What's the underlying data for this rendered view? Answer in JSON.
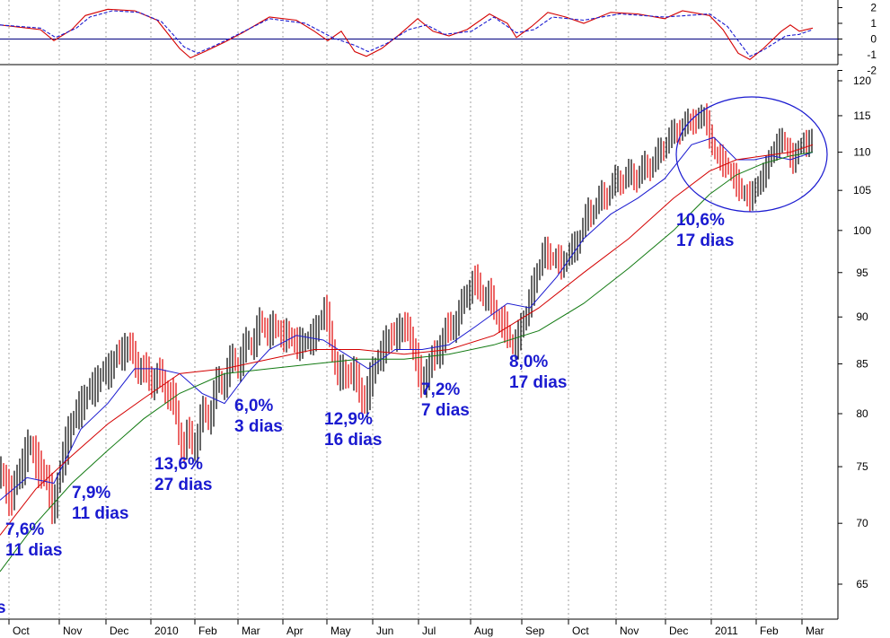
{
  "chart_data": [
    {
      "type": "line",
      "panel": "oscillator",
      "ylim": [
        -2,
        2.5
      ],
      "y_ticks": [
        "2",
        "1",
        "0",
        "-1",
        "-2"
      ],
      "zero_line": true,
      "series": [
        {
          "color": "#d40000",
          "style": "solid",
          "values": [
            [
              0,
              0.9
            ],
            [
              45,
              0.6
            ],
            [
              60,
              -0.1
            ],
            [
              80,
              0.6
            ],
            [
              95,
              1.5
            ],
            [
              120,
              1.9
            ],
            [
              150,
              1.8
            ],
            [
              175,
              1.2
            ],
            [
              200,
              -0.6
            ],
            [
              212,
              -1.2
            ],
            [
              228,
              -0.8
            ],
            [
              250,
              -0.2
            ],
            [
              270,
              0.4
            ],
            [
              300,
              1.4
            ],
            [
              330,
              1.2
            ],
            [
              350,
              0.5
            ],
            [
              365,
              -0.1
            ],
            [
              380,
              0.5
            ],
            [
              395,
              -0.8
            ],
            [
              408,
              -1.1
            ],
            [
              425,
              -0.6
            ],
            [
              445,
              0.3
            ],
            [
              465,
              1.3
            ],
            [
              482,
              0.5
            ],
            [
              500,
              0.2
            ],
            [
              520,
              0.6
            ],
            [
              545,
              1.6
            ],
            [
              565,
              1.0
            ],
            [
              575,
              0.1
            ],
            [
              592,
              0.8
            ],
            [
              610,
              1.7
            ],
            [
              630,
              1.4
            ],
            [
              650,
              1.0
            ],
            [
              680,
              1.7
            ],
            [
              710,
              1.6
            ],
            [
              740,
              1.3
            ],
            [
              760,
              1.8
            ],
            [
              790,
              1.5
            ],
            [
              805,
              0.6
            ],
            [
              822,
              -0.9
            ],
            [
              835,
              -1.3
            ],
            [
              850,
              -0.6
            ],
            [
              870,
              0.5
            ],
            [
              880,
              0.9
            ],
            [
              890,
              0.5
            ],
            [
              905,
              0.7
            ]
          ]
        },
        {
          "color": "#1a1ad0",
          "style": "dashed",
          "values": [
            [
              0,
              0.9
            ],
            [
              45,
              0.7
            ],
            [
              62,
              0.1
            ],
            [
              85,
              0.7
            ],
            [
              100,
              1.4
            ],
            [
              125,
              1.8
            ],
            [
              155,
              1.7
            ],
            [
              180,
              1.1
            ],
            [
              205,
              -0.5
            ],
            [
              220,
              -0.9
            ],
            [
              240,
              -0.4
            ],
            [
              265,
              0.3
            ],
            [
              300,
              1.3
            ],
            [
              340,
              1.0
            ],
            [
              370,
              0.1
            ],
            [
              395,
              -0.4
            ],
            [
              410,
              -0.8
            ],
            [
              430,
              -0.3
            ],
            [
              455,
              0.6
            ],
            [
              475,
              0.9
            ],
            [
              495,
              0.3
            ],
            [
              525,
              0.5
            ],
            [
              550,
              1.4
            ],
            [
              575,
              0.4
            ],
            [
              595,
              0.6
            ],
            [
              615,
              1.4
            ],
            [
              650,
              1.2
            ],
            [
              690,
              1.6
            ],
            [
              740,
              1.4
            ],
            [
              790,
              1.6
            ],
            [
              810,
              0.8
            ],
            [
              835,
              -1.1
            ],
            [
              850,
              -0.7
            ],
            [
              875,
              0.2
            ],
            [
              890,
              0.3
            ],
            [
              905,
              0.6
            ]
          ]
        }
      ]
    },
    {
      "type": "line",
      "panel": "price",
      "ylim": [
        62,
        121
      ],
      "y_ticks": [
        65,
        70,
        75,
        80,
        85,
        90,
        95,
        100,
        105,
        110,
        115,
        120
      ],
      "x_ticks": [
        "Oct",
        "Nov",
        "Dec",
        "2010",
        "Feb",
        "Mar",
        "Apr",
        "May",
        "Jun",
        "Jul",
        "Aug",
        "Sep",
        "Oct",
        "Nov",
        "Dec",
        "2011",
        "Feb",
        "Mar"
      ],
      "grid": "vertical dotted",
      "series": [
        {
          "color": "#000000",
          "style": "price bars",
          "values": [
            [
              0,
              74
            ],
            [
              15,
              72.5
            ],
            [
              30,
              77
            ],
            [
              45,
              75
            ],
            [
              60,
              71.5
            ],
            [
              75,
              78
            ],
            [
              90,
              81
            ],
            [
              110,
              83.5
            ],
            [
              125,
              85
            ],
            [
              140,
              87
            ],
            [
              160,
              84
            ],
            [
              185,
              83
            ],
            [
              205,
              77
            ],
            [
              215,
              77.5
            ],
            [
              230,
              80
            ],
            [
              250,
              84
            ],
            [
              270,
              86
            ],
            [
              290,
              89
            ],
            [
              310,
              88.5
            ],
            [
              335,
              87
            ],
            [
              350,
              88
            ],
            [
              362,
              91
            ],
            [
              375,
              84
            ],
            [
              395,
              84
            ],
            [
              405,
              81
            ],
            [
              420,
              85.5
            ],
            [
              435,
              88
            ],
            [
              455,
              89
            ],
            [
              468,
              83
            ],
            [
              480,
              85
            ],
            [
              495,
              88
            ],
            [
              510,
              90
            ],
            [
              525,
              94
            ],
            [
              545,
              92
            ],
            [
              565,
              88
            ],
            [
              575,
              87
            ],
            [
              590,
              92
            ],
            [
              605,
              97.5
            ],
            [
              625,
              96
            ],
            [
              640,
              98
            ],
            [
              655,
              102
            ],
            [
              670,
              104
            ],
            [
              690,
              106.5
            ],
            [
              710,
              107
            ],
            [
              730,
              109
            ],
            [
              745,
              112
            ],
            [
              765,
              114
            ],
            [
              785,
              115
            ],
            [
              795,
              110
            ],
            [
              810,
              108
            ],
            [
              825,
              105
            ],
            [
              835,
              104
            ],
            [
              850,
              107
            ],
            [
              860,
              110
            ],
            [
              870,
              112
            ],
            [
              882,
              109
            ],
            [
              893,
              111
            ],
            [
              905,
              112
            ]
          ]
        },
        {
          "color": "#1a1ad0",
          "style": "solid",
          "values": [
            [
              0,
              72
            ],
            [
              30,
              74
            ],
            [
              60,
              73.5
            ],
            [
              90,
              78.5
            ],
            [
              120,
              81
            ],
            [
              150,
              84.5
            ],
            [
              175,
              84.5
            ],
            [
              200,
              84
            ],
            [
              225,
              82
            ],
            [
              250,
              81
            ],
            [
              275,
              84
            ],
            [
              300,
              86.5
            ],
            [
              330,
              88
            ],
            [
              360,
              87.5
            ],
            [
              385,
              86
            ],
            [
              410,
              84.5
            ],
            [
              440,
              86.5
            ],
            [
              470,
              86.5
            ],
            [
              500,
              87
            ],
            [
              530,
              89
            ],
            [
              565,
              91.5
            ],
            [
              590,
              91
            ],
            [
              620,
              94.5
            ],
            [
              650,
              99
            ],
            [
              680,
              102
            ],
            [
              710,
              104
            ],
            [
              740,
              106.5
            ],
            [
              770,
              111
            ],
            [
              795,
              112
            ],
            [
              820,
              109
            ],
            [
              840,
              109
            ],
            [
              860,
              109.5
            ],
            [
              880,
              109
            ],
            [
              905,
              110
            ]
          ]
        },
        {
          "color": "#d40000",
          "style": "solid",
          "values": [
            [
              0,
              69
            ],
            [
              40,
              73
            ],
            [
              80,
              76
            ],
            [
              120,
              79
            ],
            [
              160,
              81.5
            ],
            [
              200,
              84
            ],
            [
              250,
              84.5
            ],
            [
              300,
              85.5
            ],
            [
              350,
              86.5
            ],
            [
              400,
              86.5
            ],
            [
              450,
              86
            ],
            [
              500,
              86.5
            ],
            [
              550,
              88
            ],
            [
              600,
              91
            ],
            [
              650,
              95
            ],
            [
              700,
              99
            ],
            [
              750,
              104
            ],
            [
              790,
              107.5
            ],
            [
              820,
              109
            ],
            [
              850,
              109.5
            ],
            [
              880,
              110
            ],
            [
              905,
              111
            ]
          ]
        },
        {
          "color": "#127a12",
          "style": "solid",
          "values": [
            [
              0,
              66
            ],
            [
              40,
              70
            ],
            [
              80,
              73.5
            ],
            [
              120,
              76.5
            ],
            [
              160,
              79.5
            ],
            [
              200,
              82
            ],
            [
              250,
              84
            ],
            [
              300,
              84.5
            ],
            [
              350,
              85
            ],
            [
              400,
              85.5
            ],
            [
              450,
              85.5
            ],
            [
              500,
              86
            ],
            [
              550,
              87
            ],
            [
              600,
              88.5
            ],
            [
              650,
              91.5
            ],
            [
              700,
              95.5
            ],
            [
              750,
              100
            ],
            [
              790,
              104.5
            ],
            [
              820,
              107
            ],
            [
              850,
              108.5
            ],
            [
              880,
              109.5
            ],
            [
              905,
              110
            ]
          ]
        }
      ],
      "annotations": [
        {
          "lines": [
            "7,6%",
            "11 dias"
          ]
        },
        {
          "lines": [
            "7,9%",
            "11 dias"
          ]
        },
        {
          "lines": [
            "13,6%",
            "27 dias"
          ]
        },
        {
          "lines": [
            "6,0%",
            "3 dias"
          ]
        },
        {
          "lines": [
            "12,9%",
            "16 dias"
          ]
        },
        {
          "lines": [
            "7,2%",
            "7 dias"
          ]
        },
        {
          "lines": [
            "8,0%",
            "17 dias"
          ]
        },
        {
          "lines": [
            "10,6%",
            "17 dias"
          ]
        }
      ],
      "edge_label": "s"
    }
  ]
}
